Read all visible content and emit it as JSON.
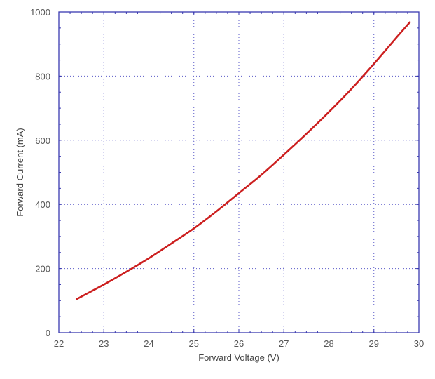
{
  "chart_data": {
    "type": "line",
    "title": "",
    "xlabel": "Forward Voltage (V)",
    "ylabel": "Forward Current (mA)",
    "xlim": [
      22,
      30
    ],
    "ylim": [
      0,
      1000
    ],
    "x_ticks": [
      22,
      23,
      24,
      25,
      26,
      27,
      28,
      29,
      30
    ],
    "y_ticks": [
      0,
      200,
      400,
      600,
      800,
      1000
    ],
    "grid": true,
    "colors": {
      "line": "#cc1f1f",
      "frame": "#3a3ab0",
      "grid": "#5a5ac8"
    },
    "series": [
      {
        "x": [
          22.4,
          23.0,
          23.5,
          24.0,
          24.5,
          25.0,
          25.5,
          26.0,
          26.5,
          27.0,
          27.5,
          28.0,
          28.5,
          29.0,
          29.5,
          29.8
        ],
        "y": [
          105,
          150,
          190,
          232,
          278,
          325,
          378,
          435,
          492,
          555,
          620,
          688,
          760,
          838,
          920,
          968
        ]
      }
    ]
  }
}
